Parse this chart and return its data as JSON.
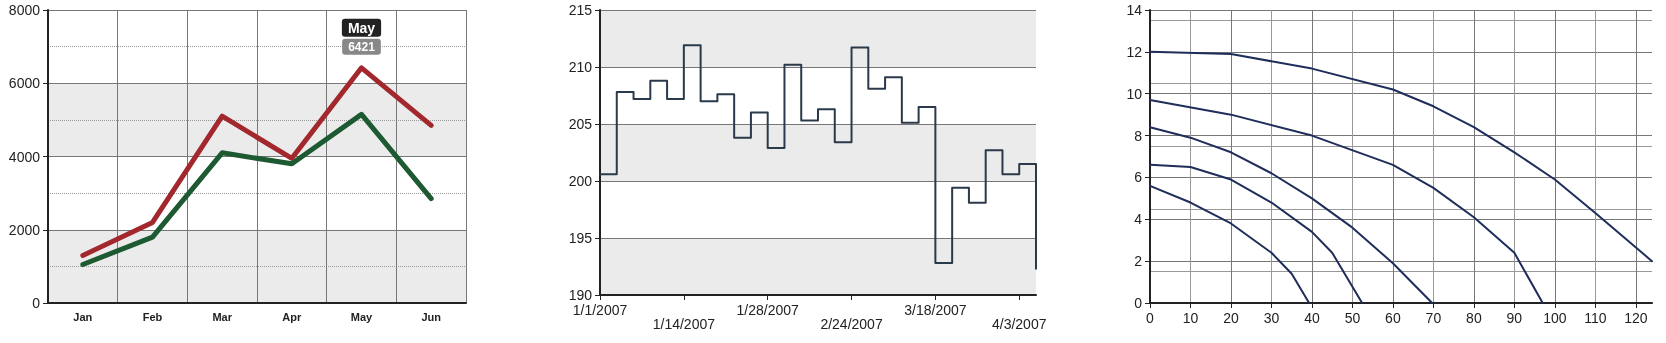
{
  "chart_data": [
    {
      "type": "line",
      "categories": [
        "Jan",
        "Feb",
        "Mar",
        "Apr",
        "May",
        "Jun"
      ],
      "series": [
        {
          "color": "#a3282d",
          "values": [
            1300,
            2200,
            5100,
            3950,
            6421,
            4850
          ]
        },
        {
          "color": "#1d5a32",
          "values": [
            1050,
            1800,
            4100,
            3800,
            5150,
            2850
          ]
        }
      ],
      "ylim": [
        0,
        8000
      ],
      "yticks": [
        0,
        2000,
        4000,
        6000,
        8000
      ],
      "grid": true,
      "annotations": [
        {
          "text": "May",
          "x": "May",
          "y": 6421
        },
        {
          "text": "6421",
          "x": "May",
          "y": 6421
        }
      ]
    },
    {
      "type": "step",
      "categories": [
        "1/1/2007",
        null,
        null,
        null,
        null,
        "1/14/2007",
        null,
        null,
        null,
        null,
        "1/28/2007",
        null,
        null,
        null,
        null,
        "2/24/2007",
        null,
        null,
        null,
        null,
        "3/18/2007",
        null,
        null,
        null,
        null,
        "4/3/2007",
        null
      ],
      "series": [
        {
          "color": "#2b3a4a",
          "values": [
            200.6,
            207.8,
            207.2,
            208.8,
            207.2,
            211.9,
            207.0,
            207.6,
            203.8,
            206.0,
            202.9,
            210.2,
            205.3,
            206.3,
            203.4,
            211.7,
            208.1,
            209.1,
            205.1,
            206.5,
            192.8,
            199.4,
            198.1,
            202.7,
            200.6,
            201.5,
            192.3
          ]
        }
      ],
      "ylim": [
        190,
        215
      ],
      "yticks": [
        190,
        195,
        200,
        205,
        210,
        215
      ],
      "grid": "y"
    },
    {
      "type": "line",
      "xlim": [
        0,
        124
      ],
      "xticks": [
        0,
        10,
        20,
        30,
        40,
        50,
        60,
        70,
        80,
        90,
        100,
        110,
        120
      ],
      "ylim": [
        0,
        14
      ],
      "yticks": [
        0,
        2,
        4,
        6,
        8,
        10,
        12,
        14
      ],
      "grid": true,
      "series": [
        {
          "color": "#1f2d5a",
          "x": [
            0,
            20,
            40,
            60,
            70,
            80,
            90,
            100,
            110,
            124
          ],
          "values": [
            12.0,
            11.9,
            11.2,
            10.2,
            9.4,
            8.4,
            7.2,
            5.9,
            4.3,
            2.0
          ]
        },
        {
          "color": "#1f2d5a",
          "x": [
            0,
            20,
            40,
            60,
            70,
            80,
            90,
            97
          ],
          "values": [
            9.7,
            9.0,
            8.0,
            6.6,
            5.5,
            4.1,
            2.4,
            0
          ]
        },
        {
          "color": "#1f2d5a",
          "x": [
            0,
            10,
            20,
            30,
            40,
            50,
            60,
            69.7
          ],
          "values": [
            8.4,
            7.9,
            7.2,
            6.2,
            5.0,
            3.6,
            1.9,
            0
          ]
        },
        {
          "color": "#1f2d5a",
          "x": [
            0,
            10,
            20,
            30,
            40,
            45,
            52.4
          ],
          "values": [
            6.6,
            6.5,
            5.9,
            4.8,
            3.4,
            2.4,
            0
          ]
        },
        {
          "color": "#1f2d5a",
          "x": [
            0,
            10,
            20,
            30,
            35,
            39.3
          ],
          "values": [
            5.6,
            4.8,
            3.8,
            2.4,
            1.4,
            0
          ]
        }
      ]
    }
  ]
}
